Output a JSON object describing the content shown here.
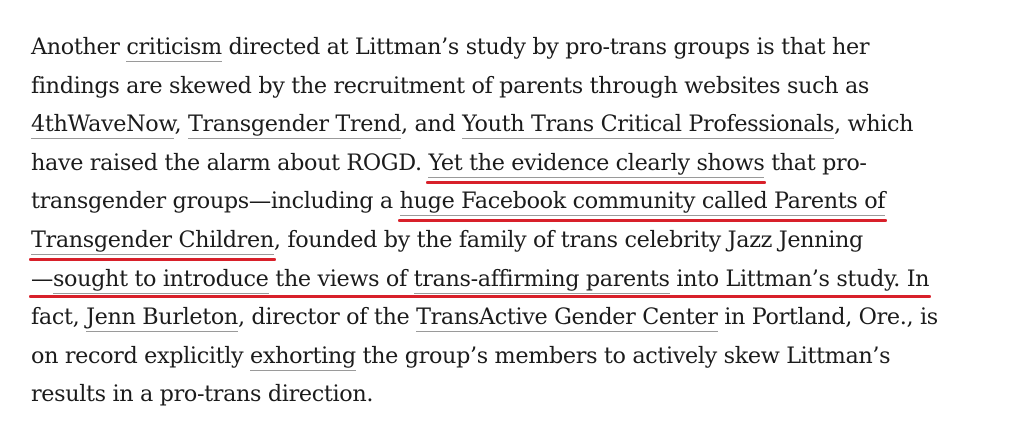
{
  "article": {
    "lines": [
      {
        "segments": [
          {
            "t": "Another "
          },
          {
            "t": "criticism",
            "link": true
          },
          {
            "t": " directed at Littman’s study by pro-trans groups is that her"
          }
        ]
      },
      {
        "segments": [
          {
            "t": "findings are skewed by the recruitment of parents through websites such as"
          }
        ]
      },
      {
        "segments": [
          {
            "t": "4thWaveNow",
            "link": true
          },
          {
            "t": ", "
          },
          {
            "t": "Transgender Trend",
            "link": true
          },
          {
            "t": ", and "
          },
          {
            "t": "Youth Trans Critical Professionals",
            "link": true
          },
          {
            "t": ", which"
          }
        ]
      },
      {
        "segments": [
          {
            "t": "have raised the alarm about ROGD. "
          },
          {
            "t": "Yet the evidence clearly shows",
            "link": true
          },
          {
            "t": " that pro-"
          }
        ]
      },
      {
        "segments": [
          {
            "t": "transgender groups—including a "
          },
          {
            "t": "huge Facebook community called Parents of",
            "link": true
          }
        ]
      },
      {
        "segments": [
          {
            "t": "Transgender Children",
            "link": true
          },
          {
            "t": ", founded by the family of trans celebrity Jazz Jenning"
          }
        ]
      },
      {
        "segments": [
          {
            "t": "—"
          },
          {
            "t": "sought to introduce",
            "link": true
          },
          {
            "t": " the views of "
          },
          {
            "t": "trans-affirming parents",
            "link": true
          },
          {
            "t": " into Littman’s study. In"
          }
        ]
      },
      {
        "segments": [
          {
            "t": "fact, "
          },
          {
            "t": "Jenn Burleton",
            "link": true
          },
          {
            "t": ", director of the "
          },
          {
            "t": "TransActive Gender Center",
            "link": true
          },
          {
            "t": " in Portland, Ore., is"
          }
        ]
      },
      {
        "segments": [
          {
            "t": "on record explicitly "
          },
          {
            "t": "exhorting",
            "link": true
          },
          {
            "t": " the group’s members to actively skew Littman’s"
          }
        ]
      },
      {
        "segments": [
          {
            "t": "results in a pro-trans direction."
          }
        ]
      }
    ]
  },
  "annotations": {
    "marker_color": "#d8202a",
    "underlined_passages": [
      "Yet the evidence clearly shows",
      "huge Facebook community called Parents of",
      "Transgender Children",
      "—sought to introduce the views of trans-affirming parents into Littman’s study."
    ]
  }
}
